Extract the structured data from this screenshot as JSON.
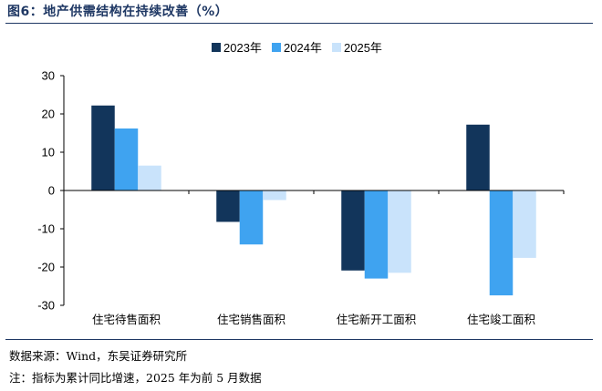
{
  "figure": {
    "title": "图6：地产供需结构在持续改善（%）",
    "source": "数据来源：Wind，东吴证券研究所",
    "note": "注：指标为累计同比增速，2025 年为前 5 月数据"
  },
  "chart_data": {
    "type": "bar",
    "categories": [
      "住宅待售面积",
      "住宅销售面积",
      "住宅新开工面积",
      "住宅竣工面积"
    ],
    "series": [
      {
        "name": "2023年",
        "color": "#12355b",
        "values": [
          22.2,
          -8.2,
          -20.9,
          17.2
        ]
      },
      {
        "name": "2024年",
        "color": "#3fa3f0",
        "values": [
          16.2,
          -14.1,
          -23.0,
          -27.4
        ]
      },
      {
        "name": "2025年",
        "color": "#c9e3fb",
        "values": [
          6.5,
          -2.5,
          -21.5,
          -17.6
        ]
      }
    ],
    "yticks": [
      30,
      20,
      10,
      0,
      -10,
      -20,
      -30
    ],
    "ylim": [
      -30,
      30
    ],
    "legend_position": "top-center",
    "xlabel": "",
    "ylabel": ""
  }
}
